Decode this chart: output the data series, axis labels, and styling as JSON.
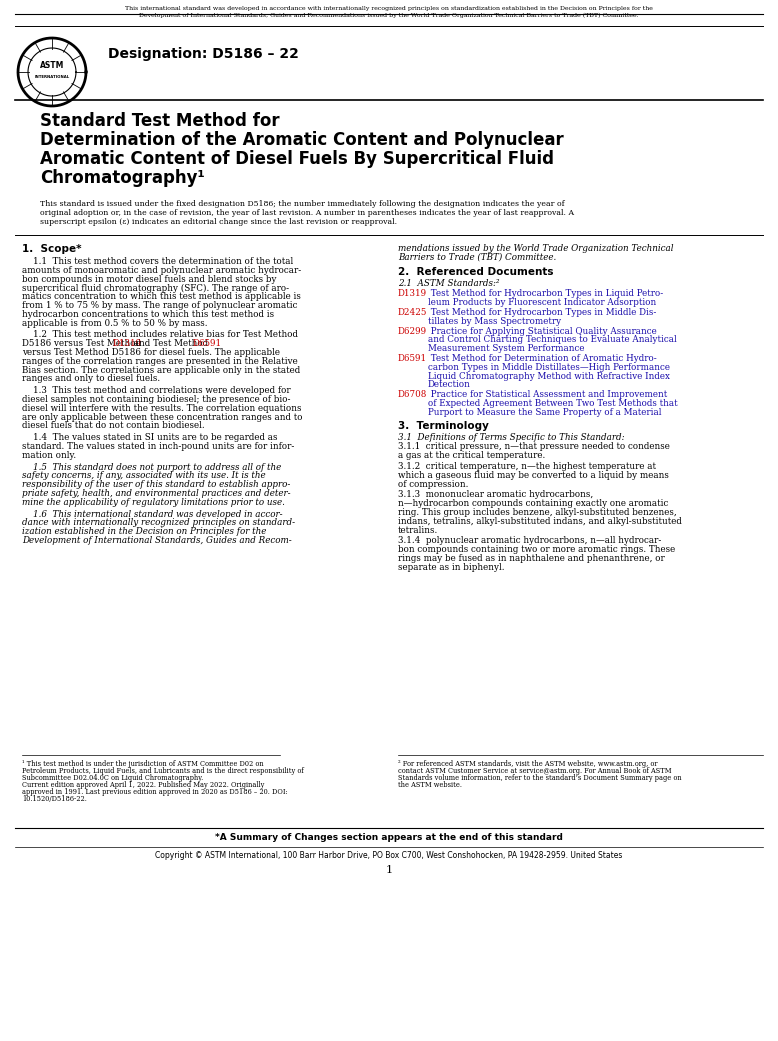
{
  "page_width": 7.78,
  "page_height": 10.41,
  "dpi": 100,
  "background_color": "#ffffff",
  "top_notice_line1": "This international standard was developed in accordance with internationally recognized principles on standardization established in the Decision on Principles for the",
  "top_notice_line2": "Development of International Standards, Guides and Recommendations issued by the World Trade Organization Technical Barriers to Trade (TBT) Committee.",
  "designation": "Designation: D5186 – 22",
  "main_title_line1": "Standard Test Method for",
  "main_title_line2": "Determination of the Aromatic Content and Polynuclear",
  "main_title_line3": "Aromatic Content of Diesel Fuels By Supercritical Fluid",
  "main_title_line4": "Chromatography¹",
  "fixed_note_line1": "This standard is issued under the fixed designation D5186; the number immediately following the designation indicates the year of",
  "fixed_note_line2": "original adoption or, in the case of revision, the year of last revision. A number in parentheses indicates the year of last reapproval. A",
  "fixed_note_line3": "superscript epsilon (ε) indicates an editorial change since the last revision or reapproval.",
  "s1_heading": "1.  Scope*",
  "s1_p1_l1": "    1.1  This test method covers the determination of the total",
  "s1_p1_l2": "amounts of monoaromatic and polynuclear aromatic hydrocar-",
  "s1_p1_l3": "bon compounds in motor diesel fuels and blend stocks by",
  "s1_p1_l4": "supercritical fluid chromatography (SFC). The range of aro-",
  "s1_p1_l5": "matics concentration to which this test method is applicable is",
  "s1_p1_l6": "from 1 % to 75 % by mass. The range of polynuclear aromatic",
  "s1_p1_l7": "hydrocarbon concentrations to which this test method is",
  "s1_p1_l8": "applicable is from 0.5 % to 50 % by mass.",
  "s1_p2_l1": "    1.2  This test method includes relative bias for Test Method",
  "s1_p2_l2a": "D5186 versus Test Method ",
  "s1_p2_l2_link1": "D1319",
  "s1_p2_l2b": " and Test Method ",
  "s1_p2_l2_link2": "D6591",
  "s1_p2_l3": "versus Test Method D5186 for diesel fuels. The applicable",
  "s1_p2_l4": "ranges of the correlation ranges are presented in the Relative",
  "s1_p2_l5": "Bias section. The correlations are applicable only in the stated",
  "s1_p2_l6": "ranges and only to diesel fuels.",
  "s1_p3_l1": "    1.3  This test method and correlations were developed for",
  "s1_p3_l2": "diesel samples not containing biodiesel; the presence of bio-",
  "s1_p3_l3": "diesel will interfere with the results. The correlation equations",
  "s1_p3_l4": "are only applicable between these concentration ranges and to",
  "s1_p3_l5": "diesel fuels that do not contain biodiesel.",
  "s1_p4_l1": "    1.4  The values stated in SI units are to be regarded as",
  "s1_p4_l2": "standard. The values stated in inch-pound units are for infor-",
  "s1_p4_l3": "mation only.",
  "s1_p5_l1": "    1.5  This standard does not purport to address all of the",
  "s1_p5_l2": "safety concerns, if any, associated with its use. It is the",
  "s1_p5_l3": "responsibility of the user of this standard to establish appro-",
  "s1_p5_l4": "priate safety, health, and environmental practices and deter-",
  "s1_p5_l5": "mine the applicability of regulatory limitations prior to use.",
  "s1_p6_l1": "    1.6  This international standard was developed in accor-",
  "s1_p6_l2": "dance with internationally recognized principles on standard-",
  "s1_p6_l3": "ization established in the Decision on Principles for the",
  "s1_p6_l4": "Development of International Standards, Guides and Recom-",
  "r_cont_l1": "mendations issued by the World Trade Organization Technical",
  "r_cont_l2": "Barriers to Trade (TBT) Committee.",
  "s2_heading": "2.  Referenced Documents",
  "s2_sub": "2.1  ASTM Standards:²",
  "ref_d1319_code": "D1319",
  "ref_d1319_l1": " Test Method for Hydrocarbon Types in Liquid Petro-",
  "ref_d1319_l2": "leum Products by Fluorescent Indicator Adsorption",
  "ref_d2425_code": "D2425",
  "ref_d2425_l1": " Test Method for Hydrocarbon Types in Middle Dis-",
  "ref_d2425_l2": "tillates by Mass Spectrometry",
  "ref_d6299_code": "D6299",
  "ref_d6299_l1": " Practice for Applying Statistical Quality Assurance",
  "ref_d6299_l2": "and Control Charting Techniques to Evaluate Analytical",
  "ref_d6299_l3": "Measurement System Performance",
  "ref_d6591_code": "D6591",
  "ref_d6591_l1": " Test Method for Determination of Aromatic Hydro-",
  "ref_d6591_l2": "carbon Types in Middle Distillates—High Performance",
  "ref_d6591_l3": "Liquid Chromatography Method with Refractive Index",
  "ref_d6591_l4": "Detection",
  "ref_d6708_code": "D6708",
  "ref_d6708_l1": " Practice for Statistical Assessment and Improvement",
  "ref_d6708_l2": "of Expected Agreement Between Two Test Methods that",
  "ref_d6708_l3": "Purport to Measure the Same Property of a Material",
  "s3_heading": "3.  Terminology",
  "s3_sub": "3.1  Definitions of Terms Specific to This Standard:",
  "s3_311_l1": "3.1.1  critical pressure, n—that pressure needed to condense",
  "s3_311_l2": "a gas at the critical temperature.",
  "s3_312_l1": "3.1.2  critical temperature, n—the highest temperature at",
  "s3_312_l2": "which a gaseous fluid may be converted to a liquid by means",
  "s3_312_l3": "of compression.",
  "s3_313_l1": "3.1.3  mononuclear aromatic hydrocarbons,",
  "s3_313_l2": "n—hydrocarbon compounds containing exactly one aromatic",
  "s3_313_l3": "ring. This group includes benzene, alkyl-substituted benzenes,",
  "s3_313_l4": "indans, tetralins, alkyl-substituted indans, and alkyl-substituted",
  "s3_313_l5": "tetralins.",
  "s3_314_l1": "3.1.4  polynuclear aromatic hydrocarbons, n—all hydrocar-",
  "s3_314_l2": "bon compounds containing two or more aromatic rings. These",
  "s3_314_l3": "rings may be fused as in naphthalene and phenanthrene, or",
  "s3_314_l4": "separate as in biphenyl.",
  "fn1_l1": "¹ This test method is under the jurisdiction of ASTM Committee D02 on",
  "fn1_l2": "Petroleum Products, Liquid Fuels, and Lubricants and is the direct responsibility of",
  "fn1_l3": "Subcommittee D02.04.0C on Liquid Chromatography.",
  "fn1_l4": "Current edition approved April 1, 2022. Published May 2022. Originally",
  "fn1_l5": "approved in 1991. Last previous edition approved in 2020 as D5186 – 20. DOI:",
  "fn1_l6": "10.1520/D5186-22.",
  "fn2_l1": "² For referenced ASTM standards, visit the ASTM website, www.astm.org, or",
  "fn2_l2": "contact ASTM Customer Service at service@astm.org. For Annual Book of ASTM",
  "fn2_l3": "Standards volume information, refer to the standard’s Document Summary page on",
  "fn2_l4": "the ASTM website.",
  "footer_summary": "*A Summary of Changes section appears at the end of this standard",
  "footer_copyright": "Copyright © ASTM International, 100 Barr Harbor Drive, PO Box C700, West Conshohocken, PA 19428-2959. United States",
  "footer_page": "1",
  "link_color": "#cc0000",
  "blue_color": "#1a0dab",
  "text_color": "#000000",
  "fn1_link1": "D02",
  "fn1_link2": "D02.04.0C"
}
